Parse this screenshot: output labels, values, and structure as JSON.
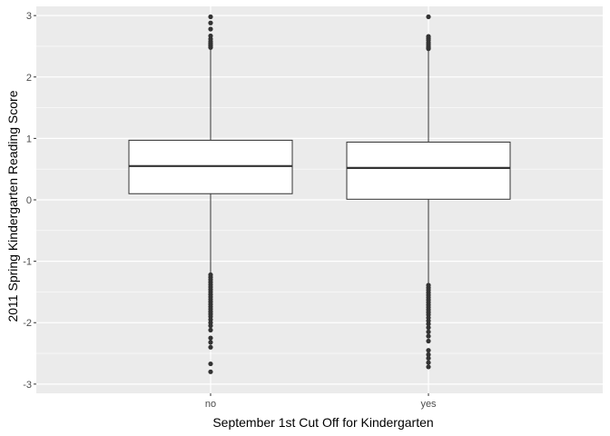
{
  "chart_data": {
    "type": "box",
    "title": "",
    "xlabel": "September 1st Cut Off for Kindergarten",
    "ylabel": "2011 Spring Kindergarten Reading Score",
    "categories": [
      "no",
      "yes"
    ],
    "ylim": [
      -3.15,
      3.15
    ],
    "y_ticks": [
      -3,
      -2,
      -1,
      0,
      1,
      2,
      3
    ],
    "y_tick_labels": [
      "-3",
      "-2",
      "-1",
      "0",
      "1",
      "2",
      "3"
    ],
    "grid": true,
    "legend": "none",
    "boxes": [
      {
        "category": "no",
        "q1": 0.1,
        "median": 0.55,
        "q3": 0.97,
        "whisker_low": -1.2,
        "whisker_high": 2.45,
        "outliers": [
          2.48,
          2.5,
          2.52,
          2.55,
          2.58,
          2.62,
          2.67,
          2.78,
          2.88,
          2.98,
          -1.22,
          -1.26,
          -1.3,
          -1.34,
          -1.38,
          -1.42,
          -1.46,
          -1.5,
          -1.54,
          -1.58,
          -1.62,
          -1.66,
          -1.7,
          -1.74,
          -1.78,
          -1.82,
          -1.86,
          -1.9,
          -1.95,
          -2.0,
          -2.05,
          -2.12,
          -2.25,
          -2.32,
          -2.4,
          -2.67,
          -2.8
        ]
      },
      {
        "category": "yes",
        "q1": 0.01,
        "median": 0.52,
        "q3": 0.94,
        "whisker_low": -1.37,
        "whisker_high": 2.45,
        "outliers": [
          2.46,
          2.48,
          2.5,
          2.53,
          2.56,
          2.6,
          2.63,
          2.66,
          2.98,
          -1.39,
          -1.43,
          -1.47,
          -1.51,
          -1.55,
          -1.59,
          -1.63,
          -1.67,
          -1.71,
          -1.75,
          -1.79,
          -1.83,
          -1.87,
          -1.92,
          -1.97,
          -2.02,
          -2.08,
          -2.15,
          -2.22,
          -2.3,
          -2.45,
          -2.52,
          -2.58,
          -2.65,
          -2.72
        ]
      }
    ],
    "colors": {
      "panel_background": "#ebebeb",
      "grid_major": "#ffffff",
      "box_fill": "#ffffff",
      "box_stroke": "#333333",
      "outlier": "#333333",
      "tick_text": "#4d4d4d"
    }
  }
}
